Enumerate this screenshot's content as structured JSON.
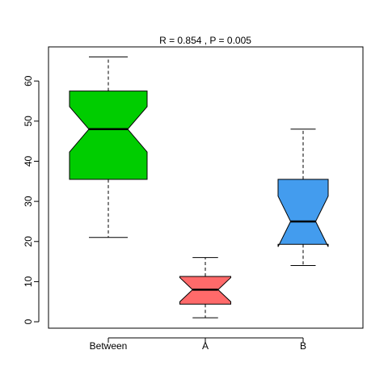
{
  "chart_data": {
    "type": "boxplot",
    "title": "R =  0.854 ,  P =  0.005",
    "categories": [
      "Between",
      "A",
      "B"
    ],
    "whisker_low": [
      21,
      1,
      14
    ],
    "q1": [
      35.5,
      4.4,
      19.3
    ],
    "median": [
      48,
      8,
      25
    ],
    "q3": [
      57.5,
      11.3,
      35.5
    ],
    "whisker_high": [
      66,
      16,
      48
    ],
    "notch_low": [
      42.3,
      5,
      18.7
    ],
    "notch_high": [
      53.6,
      11,
      31.3
    ],
    "colors": [
      "#00cd00",
      "#ff6a6a",
      "#439cee"
    ],
    "ylim": [
      -1.6,
      68.5
    ],
    "yticks": [
      0,
      10,
      20,
      30,
      40,
      50,
      60
    ]
  }
}
